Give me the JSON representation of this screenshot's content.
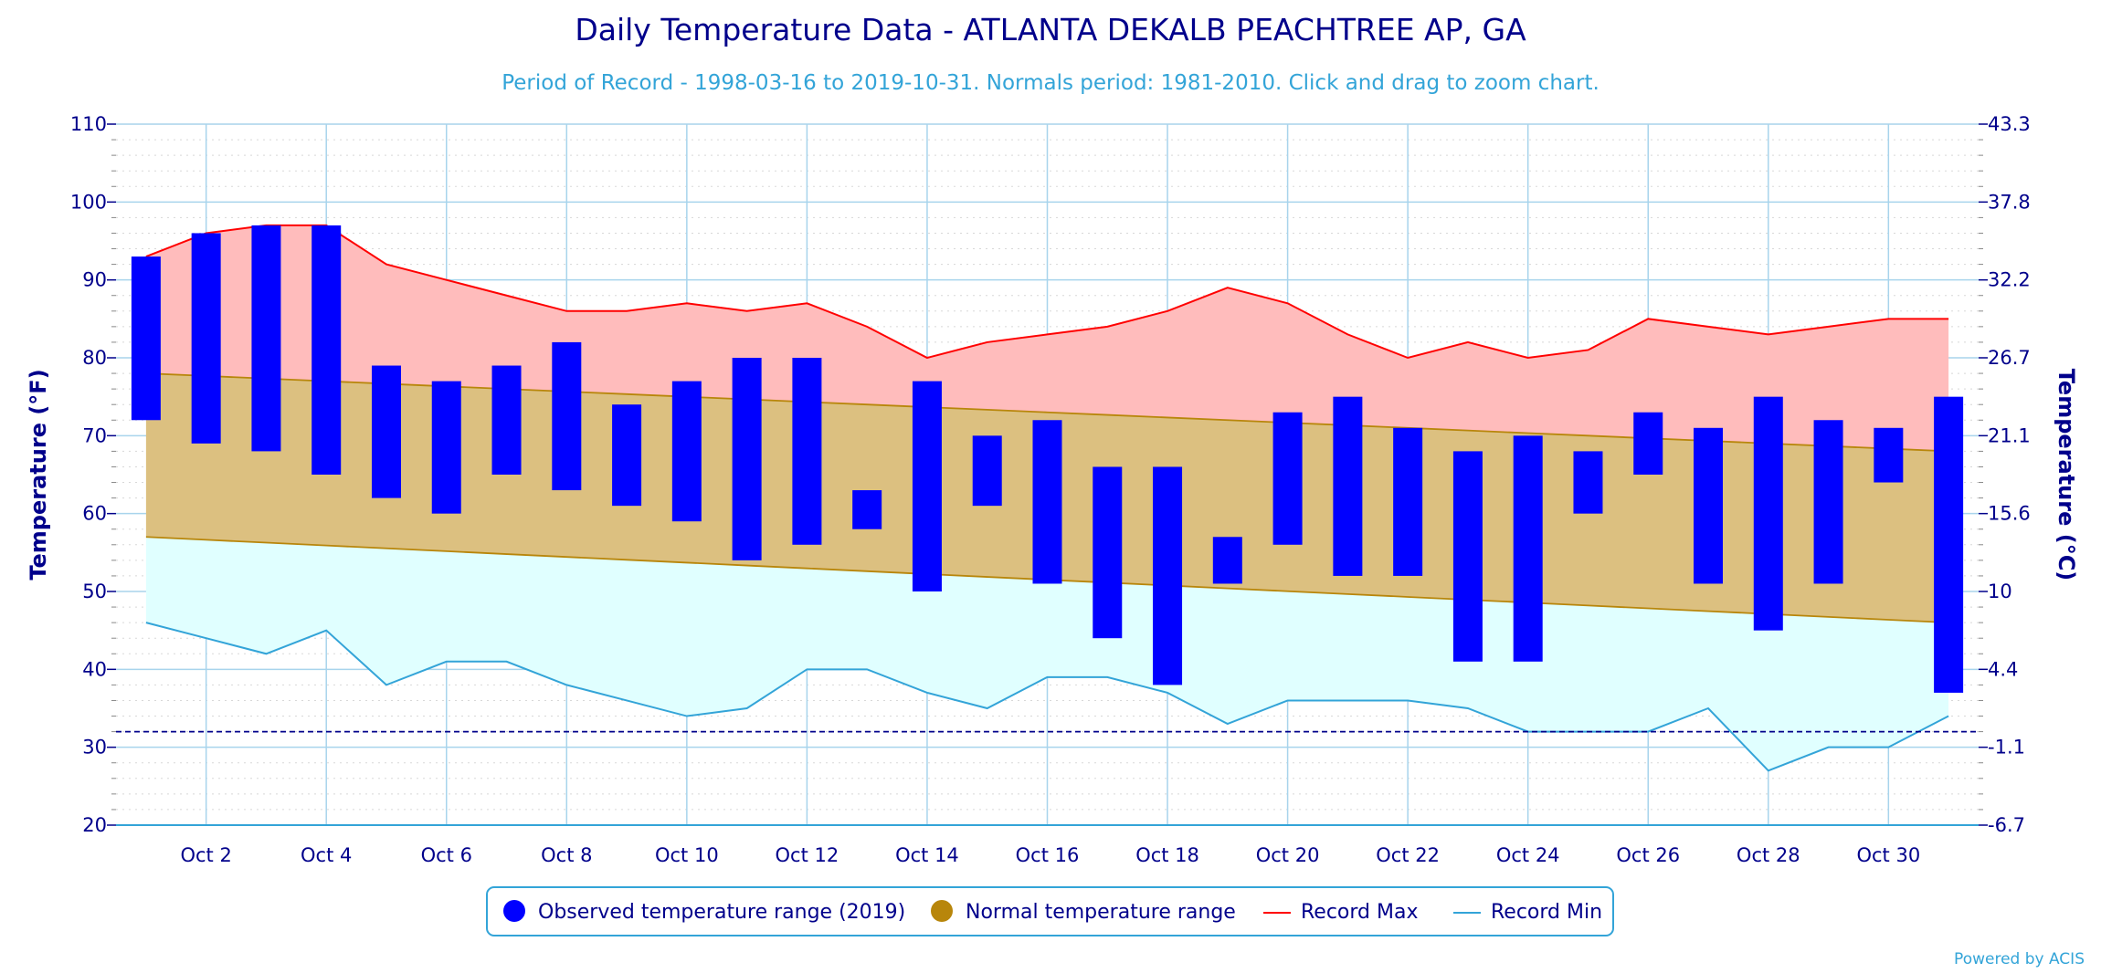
{
  "chart_data": {
    "type": "bar",
    "title": "Daily Temperature Data - ATLANTA DEKALB PEACHTREE AP, GA",
    "subtitle": "Period of Record - 1998-03-16 to 2019-10-31. Normals period: 1981-2010. Click and drag to zoom chart.",
    "ylabel": "Temperature (°F)",
    "ylabel_right": "Temperature (°C)",
    "ylim": [
      20,
      110
    ],
    "yticks": [
      20,
      30,
      40,
      50,
      60,
      70,
      80,
      90,
      100,
      110
    ],
    "yticks_right": [
      "-6.7",
      "-1.1",
      "4.4",
      "10",
      "15.6",
      "21.1",
      "26.7",
      "32.2",
      "37.8",
      "43.3"
    ],
    "x": [
      1,
      2,
      3,
      4,
      5,
      6,
      7,
      8,
      9,
      10,
      11,
      12,
      13,
      14,
      15,
      16,
      17,
      18,
      19,
      20,
      21,
      22,
      23,
      24,
      25,
      26,
      27,
      28,
      29,
      30,
      31
    ],
    "x_tick_labels": [
      "Oct 2",
      "Oct 4",
      "Oct 6",
      "Oct 8",
      "Oct 10",
      "Oct 12",
      "Oct 14",
      "Oct 16",
      "Oct 18",
      "Oct 20",
      "Oct 22",
      "Oct 24",
      "Oct 26",
      "Oct 28",
      "Oct 30"
    ],
    "x_tick_days": [
      2,
      4,
      6,
      8,
      10,
      12,
      14,
      16,
      18,
      20,
      22,
      24,
      26,
      28,
      30
    ],
    "freezing_line": 32,
    "grid": true,
    "series": [
      {
        "name": "Observed temperature range (2019)",
        "color": "#0000ff",
        "low": [
          72,
          69,
          68,
          65,
          62,
          60,
          65,
          63,
          61,
          59,
          54,
          56,
          58,
          50,
          61,
          51,
          44,
          38,
          51,
          56,
          52,
          52,
          41,
          41,
          60,
          65,
          51,
          45,
          51,
          64,
          37
        ],
        "high": [
          93,
          96,
          97,
          97,
          79,
          77,
          79,
          82,
          74,
          77,
          80,
          80,
          63,
          77,
          70,
          72,
          66,
          66,
          57,
          73,
          75,
          71,
          68,
          70,
          68,
          73,
          71,
          75,
          72,
          71,
          75
        ]
      },
      {
        "name": "Normal temperature range",
        "color": "#b8860b",
        "low_start": 57,
        "low_end": 46,
        "high_start": 78,
        "high_end": 68
      },
      {
        "name": "Record Max",
        "color": "#ff0000",
        "values": [
          93,
          96,
          97,
          97,
          92,
          90,
          88,
          86,
          86,
          87,
          86,
          87,
          84,
          80,
          82,
          83,
          84,
          86,
          89,
          87,
          83,
          80,
          82,
          80,
          81,
          85,
          84,
          83,
          84,
          85,
          85
        ]
      },
      {
        "name": "Record Min",
        "color": "#33a4d8",
        "values": [
          46,
          44,
          42,
          45,
          38,
          41,
          41,
          38,
          36,
          34,
          35,
          40,
          40,
          37,
          35,
          39,
          39,
          37,
          33,
          36,
          36,
          36,
          35,
          32,
          32,
          32,
          35,
          27,
          30,
          30,
          34
        ]
      }
    ],
    "legend_position": "bottom-center"
  },
  "credit": "Powered by ACIS"
}
